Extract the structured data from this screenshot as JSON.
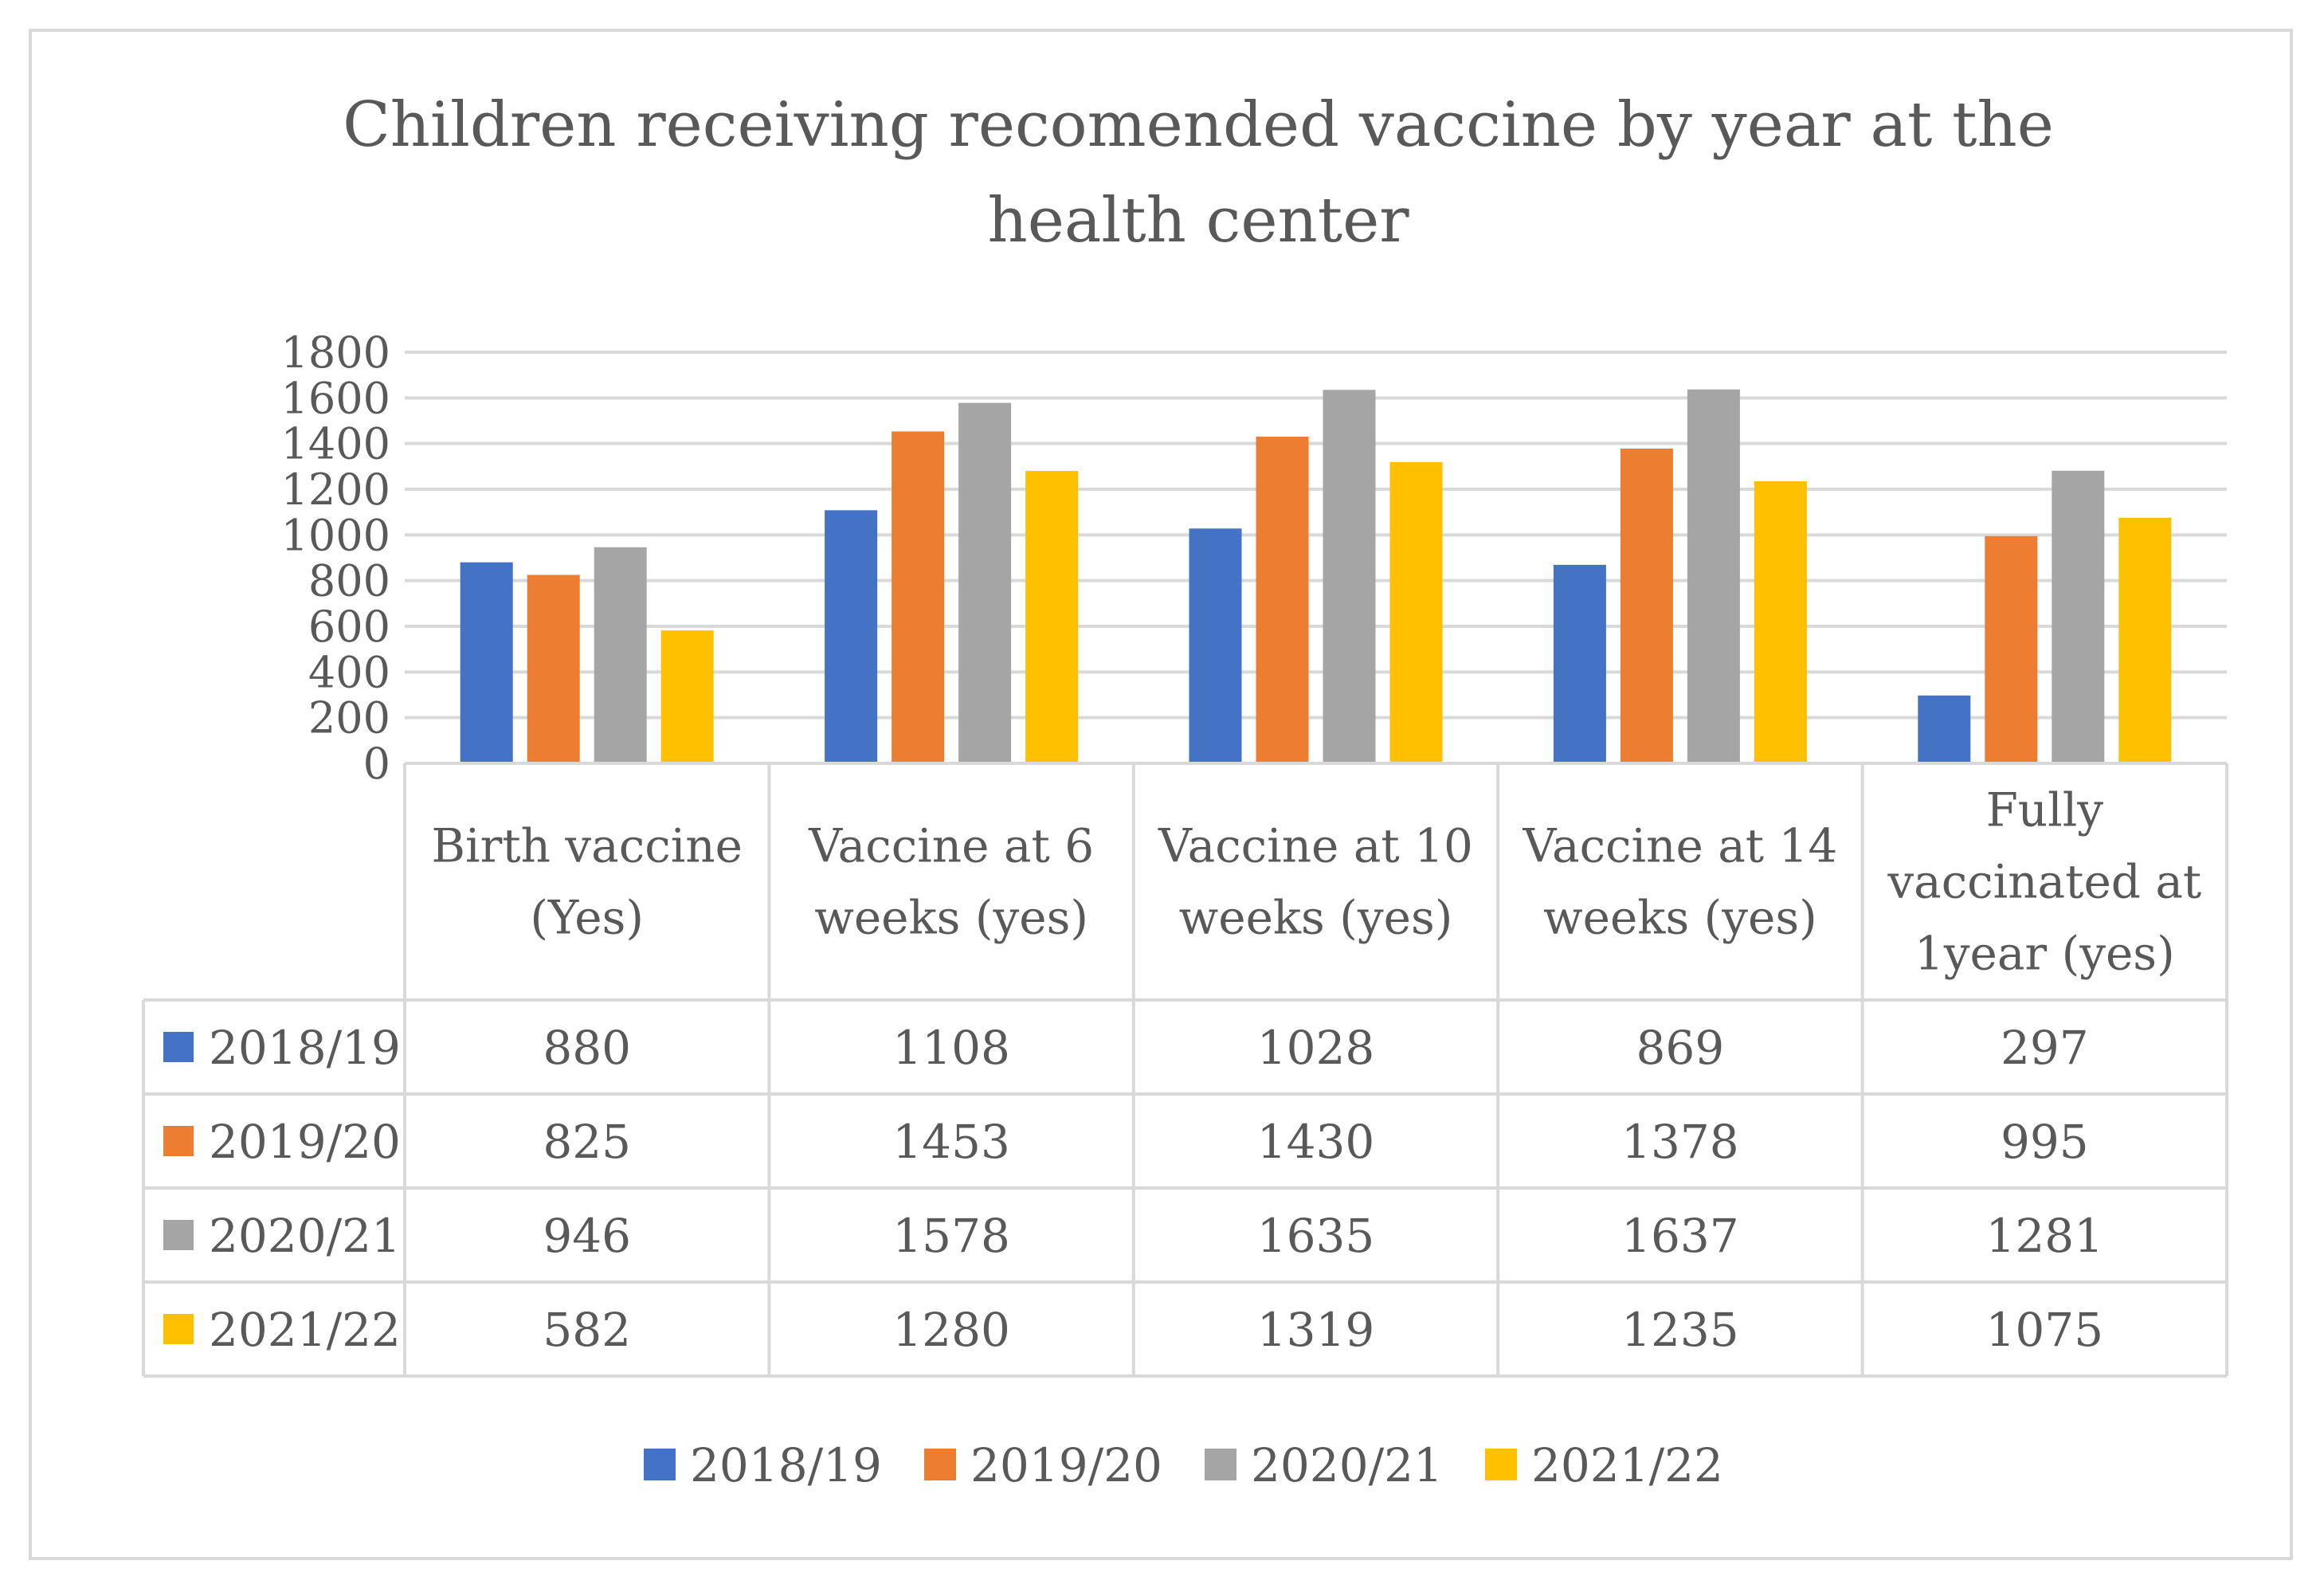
{
  "chart_data": {
    "type": "bar",
    "title_lines": [
      "Children receiving recomended vaccine by year at the",
      "health center"
    ],
    "categories": [
      [
        "Birth vaccine",
        "(Yes)"
      ],
      [
        "Vaccine at 6",
        "weeks (yes)"
      ],
      [
        "Vaccine at 10",
        "weeks (yes)"
      ],
      [
        "Vaccine at 14",
        "weeks (yes)"
      ],
      [
        "Fully",
        "vaccinated at",
        "1year (yes)"
      ]
    ],
    "series": [
      {
        "name": "2018/19",
        "color": "#4472c4",
        "values": [
          880,
          1108,
          1028,
          869,
          297
        ]
      },
      {
        "name": "2019/20",
        "color": "#ed7d31",
        "values": [
          825,
          1453,
          1430,
          1378,
          995
        ]
      },
      {
        "name": "2020/21",
        "color": "#a5a5a5",
        "values": [
          946,
          1578,
          1635,
          1637,
          1281
        ]
      },
      {
        "name": "2021/22",
        "color": "#ffc000",
        "values": [
          582,
          1280,
          1319,
          1235,
          1075
        ]
      }
    ],
    "ylim": [
      0,
      1800
    ],
    "yticks": [
      0,
      200,
      400,
      600,
      800,
      1000,
      1200,
      1400,
      1600,
      1800
    ],
    "grid": true,
    "legend_position": "bottom",
    "data_table": true
  }
}
